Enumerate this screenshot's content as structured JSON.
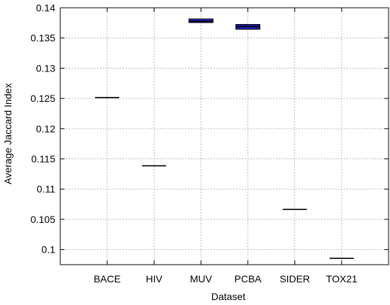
{
  "chart_data": {
    "type": "box",
    "xlabel": "Dataset",
    "ylabel": "Average Jaccard Index",
    "ylim": [
      0.0975,
      0.14
    ],
    "yticks": [
      0.1,
      0.105,
      0.11,
      0.115,
      0.12,
      0.125,
      0.13,
      0.135,
      0.14
    ],
    "ytick_labels": [
      "0.1",
      "0.105",
      "0.11",
      "0.115",
      "0.12",
      "0.125",
      "0.13",
      "0.135",
      "0.14"
    ],
    "categories": [
      "BACE",
      "HIV",
      "MUV",
      "PCBA",
      "SIDER",
      "TOX21"
    ],
    "boxes": [
      {
        "label": "BACE",
        "q1": 0.12515,
        "median": 0.12515,
        "q3": 0.12515
      },
      {
        "label": "HIV",
        "q1": 0.11385,
        "median": 0.11385,
        "q3": 0.11385
      },
      {
        "label": "MUV",
        "q1": 0.13755,
        "median": 0.13775,
        "q3": 0.13815
      },
      {
        "label": "PCBA",
        "q1": 0.13645,
        "median": 0.1369,
        "q3": 0.13725
      },
      {
        "label": "SIDER",
        "q1": 0.10665,
        "median": 0.10665,
        "q3": 0.10665
      },
      {
        "label": "TOX21",
        "q1": 0.09855,
        "median": 0.09855,
        "q3": 0.09855
      }
    ],
    "grid": true,
    "box_fill": "#2020b0",
    "line_color": "#000000",
    "grid_color": "#b8b8b8"
  }
}
